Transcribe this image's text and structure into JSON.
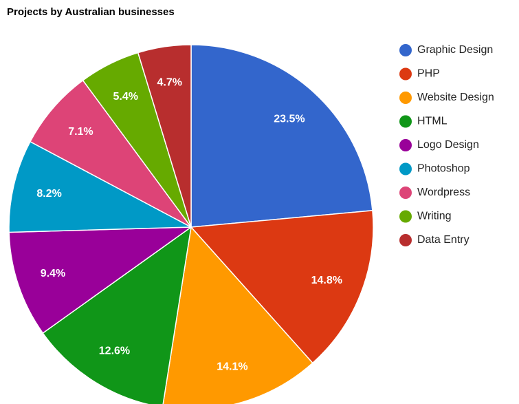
{
  "chart_data": {
    "type": "pie",
    "title": "Projects by Australian businesses",
    "categories": [
      "Graphic Design",
      "PHP",
      "Website Design",
      "HTML",
      "Logo Design",
      "Photoshop",
      "Wordpress",
      "Writing",
      "Data Entry"
    ],
    "values": [
      23.5,
      14.8,
      14.1,
      12.6,
      9.4,
      8.2,
      7.1,
      5.4,
      4.7
    ],
    "value_labels": [
      "23.5%",
      "14.8%",
      "14.1%",
      "12.6%",
      "9.4%",
      "8.2%",
      "7.1%",
      "5.4%",
      "4.7%"
    ],
    "colors": [
      "#3366cc",
      "#dc3912",
      "#ff9900",
      "#109618",
      "#990099",
      "#0099c6",
      "#dd4477",
      "#66aa00",
      "#b82e2e"
    ],
    "legend": "right"
  }
}
